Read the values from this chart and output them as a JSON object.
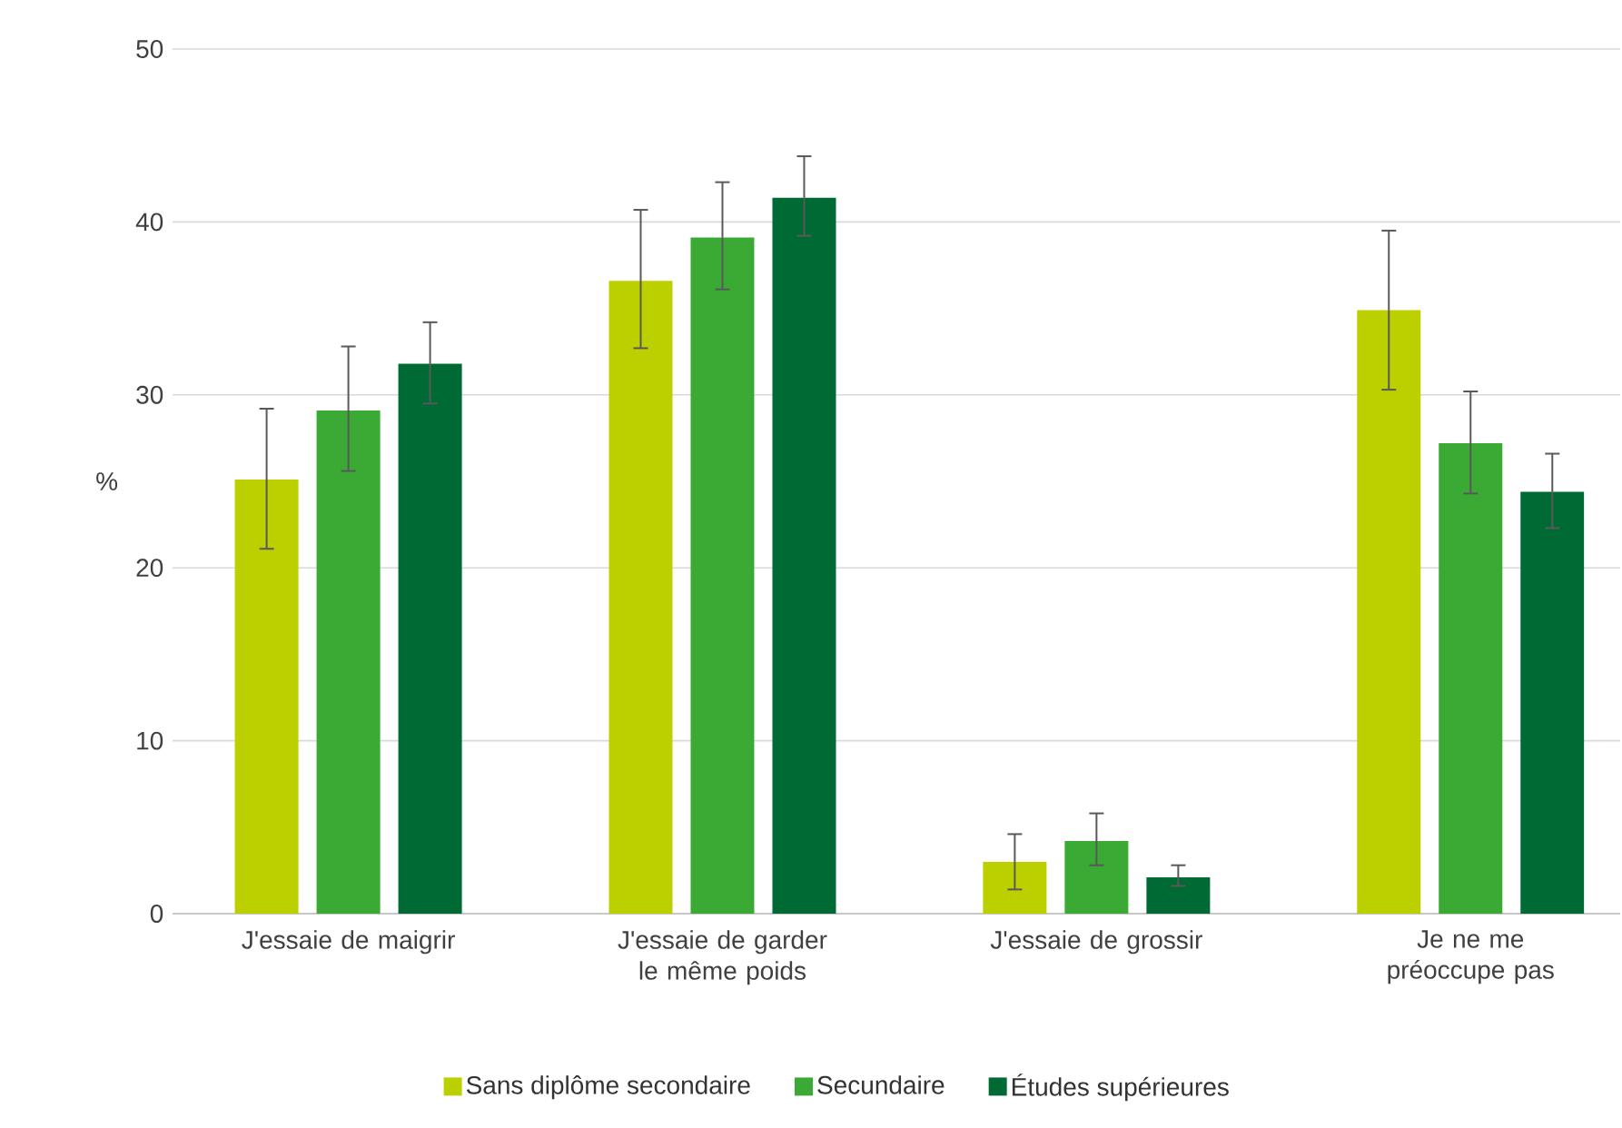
{
  "chart_data": {
    "type": "bar",
    "ylabel": "%",
    "categories": [
      "J'essaie de maigrir",
      "J'essaie de garder le même poids",
      "J'essaie de grossir",
      "Je ne me préoccupe pas"
    ],
    "series": [
      {
        "name": "Sans diplôme secondaire",
        "color": "#bcd000",
        "values": [
          25.1,
          36.6,
          3.0,
          34.9
        ],
        "errors": [
          [
            21.1,
            29.2
          ],
          [
            32.7,
            40.7
          ],
          [
            1.4,
            4.6
          ],
          [
            30.3,
            39.5
          ]
        ]
      },
      {
        "name": "Secundaire",
        "color": "#3aaa35",
        "values": [
          29.1,
          39.1,
          4.2,
          27.2
        ],
        "errors": [
          [
            25.6,
            32.8
          ],
          [
            36.1,
            42.3
          ],
          [
            2.8,
            5.8
          ],
          [
            24.3,
            30.2
          ]
        ]
      },
      {
        "name": "Études supérieures",
        "color": "#006a35",
        "values": [
          31.8,
          41.4,
          2.1,
          24.4
        ],
        "errors": [
          [
            29.5,
            34.2
          ],
          [
            39.2,
            43.8
          ],
          [
            1.6,
            2.8
          ],
          [
            22.3,
            26.6
          ]
        ]
      }
    ],
    "ylim": [
      0,
      50
    ],
    "yticks": [
      0,
      10,
      20,
      30,
      40,
      50
    ],
    "grid": "y",
    "legend": "bottom"
  }
}
